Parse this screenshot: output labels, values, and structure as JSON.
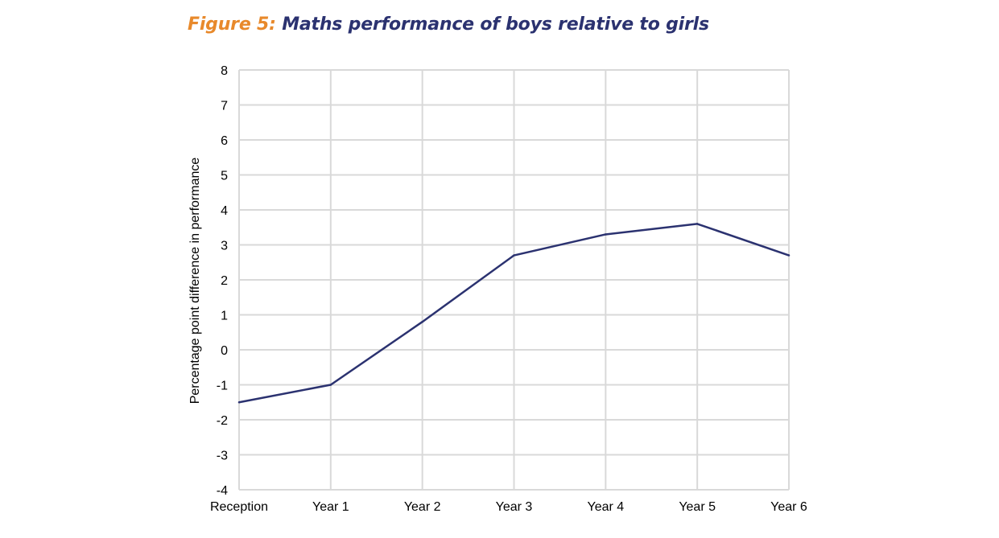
{
  "title": {
    "label": "Figure 5:",
    "text": "Maths performance of boys relative to girls"
  },
  "colors": {
    "label": "#E8892B",
    "title": "#2B3270",
    "line": "#2B3270",
    "grid": "#D9D9D9"
  },
  "chart_data": {
    "type": "line",
    "title": "Maths performance of boys relative to girls",
    "xlabel": "",
    "ylabel": "Percentage point difference in performance",
    "categories": [
      "Reception",
      "Year 1",
      "Year 2",
      "Year 3",
      "Year 4",
      "Year 5",
      "Year 6"
    ],
    "series": [
      {
        "values": [
          -1.5,
          -1.0,
          0.8,
          2.7,
          3.3,
          3.6,
          2.7
        ]
      }
    ],
    "ylim": [
      -4,
      8
    ],
    "yticks": [
      8,
      7,
      6,
      5,
      4,
      3,
      2,
      1,
      0,
      -1,
      -2,
      -3,
      -4
    ],
    "grid": true,
    "legend": "none"
  }
}
